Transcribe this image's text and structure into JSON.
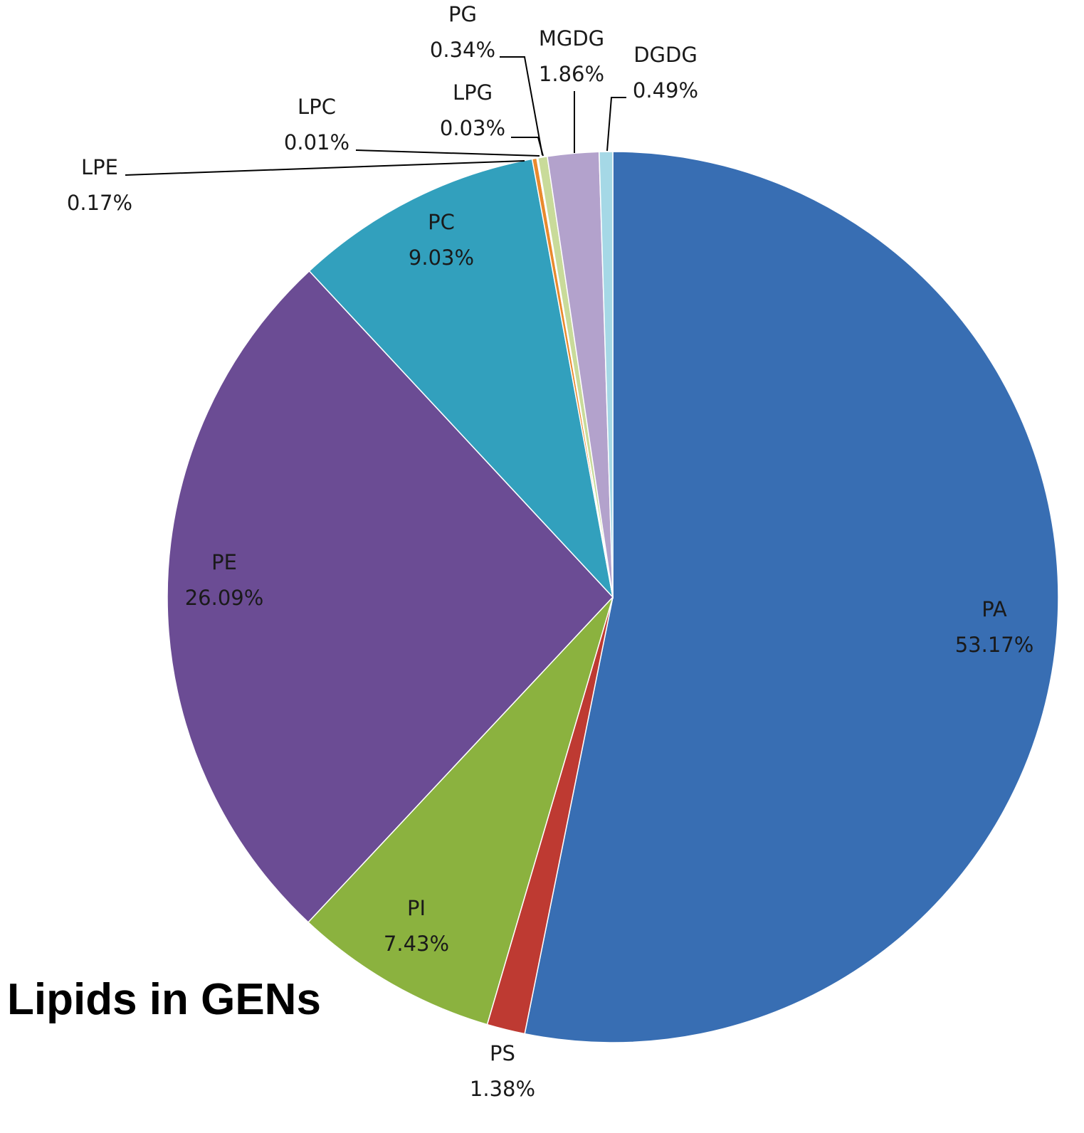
{
  "chart_data": {
    "type": "pie",
    "title": "Lipids in GENs",
    "start_angle_deg": 0,
    "direction": "clockwise",
    "slices": [
      {
        "label": "PA",
        "value_text": "53.17%",
        "value": 53.17,
        "color": "#386EB3"
      },
      {
        "label": "PS",
        "value_text": "1.38%",
        "value": 1.38,
        "color": "#BE3A32"
      },
      {
        "label": "PI",
        "value_text": "7.43%",
        "value": 7.43,
        "color": "#8BB23F"
      },
      {
        "label": "PE",
        "value_text": "26.09%",
        "value": 26.09,
        "color": "#6B4C94"
      },
      {
        "label": "PC",
        "value_text": "9.03%",
        "value": 9.03,
        "color": "#32A0BD"
      },
      {
        "label": "LPE",
        "value_text": "0.17%",
        "value": 0.17,
        "color": "#E88A2E"
      },
      {
        "label": "LPC",
        "value_text": "0.01%",
        "value": 0.01,
        "color": "#4A74B8"
      },
      {
        "label": "LPG",
        "value_text": "0.03%",
        "value": 0.03,
        "color": "#C9524B"
      },
      {
        "label": "PG",
        "value_text": "0.34%",
        "value": 0.34,
        "color": "#C9DB9A"
      },
      {
        "label": "MGDG",
        "value_text": "1.86%",
        "value": 1.86,
        "color": "#B3A2CC"
      },
      {
        "label": "DGDG",
        "value_text": "0.49%",
        "value": 0.49,
        "color": "#A5D8E6"
      }
    ]
  }
}
